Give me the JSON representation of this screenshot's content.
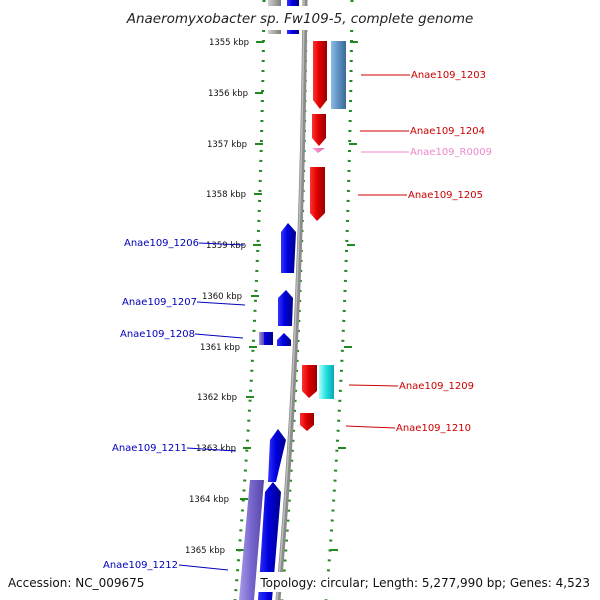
{
  "title": "Anaeromyxobacter sp. Fw109-5, complete genome",
  "footer": {
    "accession": "Accession: NC_009675",
    "topology": "Topology: circular; Length: 5,277,990 bp; Genes: 4,523"
  },
  "ticks": [
    "1355 kbp",
    "1356 kbp",
    "1357 kbp",
    "1358 kbp",
    "1359 kbp",
    "1360 kbp",
    "1361 kbp",
    "1362 kbp",
    "1363 kbp",
    "1364 kbp",
    "1365 kbp"
  ],
  "genes": [
    {
      "id": "Anae109_1203",
      "label": "Anae109_1203",
      "strand": "+",
      "color": "#dd0000"
    },
    {
      "id": "Anae109_1204",
      "label": "Anae109_1204",
      "strand": "+",
      "color": "#dd0000"
    },
    {
      "id": "Anae109_R0009",
      "label": "Anae109_R0009",
      "strand": "+",
      "color": "#ee88cc"
    },
    {
      "id": "Anae109_1205",
      "label": "Anae109_1205",
      "strand": "+",
      "color": "#dd0000"
    },
    {
      "id": "Anae109_1206",
      "label": "Anae109_1206",
      "strand": "-",
      "color": "#0000dd"
    },
    {
      "id": "Anae109_1207",
      "label": "Anae109_1207",
      "strand": "-",
      "color": "#0000dd"
    },
    {
      "id": "Anae109_1208",
      "label": "Anae109_1208",
      "strand": "-",
      "color": "#0000dd"
    },
    {
      "id": "Anae109_1209",
      "label": "Anae109_1209",
      "strand": "+",
      "color": "#dd0000"
    },
    {
      "id": "Anae109_1210",
      "label": "Anae109_1210",
      "strand": "+",
      "color": "#dd0000"
    },
    {
      "id": "Anae109_1211",
      "label": "Anae109_1211",
      "strand": "-",
      "color": "#0000dd"
    },
    {
      "id": "Anae109_1212",
      "label": "Anae109_1212",
      "strand": "-",
      "color": "#0000dd"
    }
  ],
  "colors": {
    "plus_strand": "#dd0000",
    "minus_strand": "#0000dd",
    "plus_label": "#cc0000",
    "minus_label": "#0000bb",
    "rna": "#ee88cc",
    "track_dots": "#228822",
    "backbone": "#888888",
    "highlight_blue": "#5c8fbf",
    "highlight_cyan": "#22dddd",
    "highlight_purple": "#7766cc"
  }
}
